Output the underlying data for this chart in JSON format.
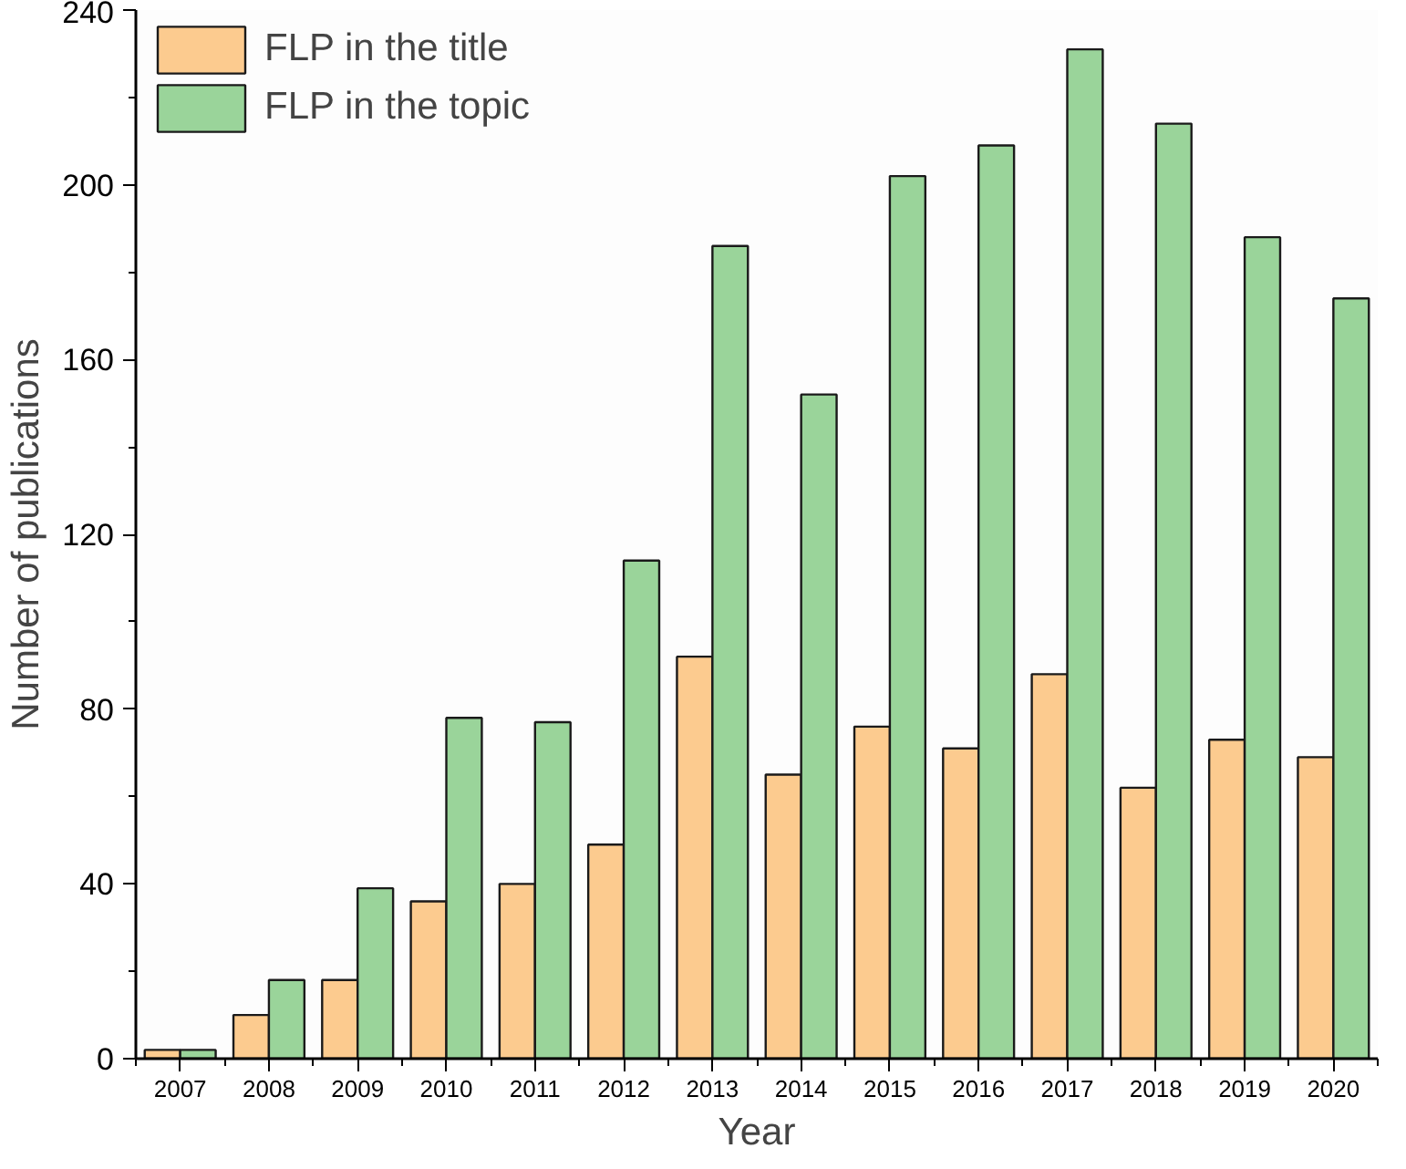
{
  "chart_data": {
    "type": "bar",
    "xlabel": "Year",
    "ylabel": "Number of publications",
    "categories": [
      "2007",
      "2008",
      "2009",
      "2010",
      "2011",
      "2012",
      "2013",
      "2014",
      "2015",
      "2016",
      "2017",
      "2018",
      "2019",
      "2020"
    ],
    "series": [
      {
        "name": "FLP in the title",
        "color": "#fccb8f",
        "values": [
          2,
          10,
          18,
          36,
          40,
          49,
          92,
          65,
          76,
          71,
          88,
          62,
          73,
          69
        ]
      },
      {
        "name": "FLP in the topic",
        "color": "#9ad49a",
        "values": [
          2,
          18,
          39,
          78,
          77,
          114,
          186,
          152,
          202,
          209,
          231,
          214,
          188,
          174
        ]
      }
    ],
    "ylim": [
      0,
      240
    ],
    "yticks": [
      0,
      40,
      80,
      120,
      160,
      200,
      240
    ],
    "grid": false,
    "legend": "top left"
  }
}
